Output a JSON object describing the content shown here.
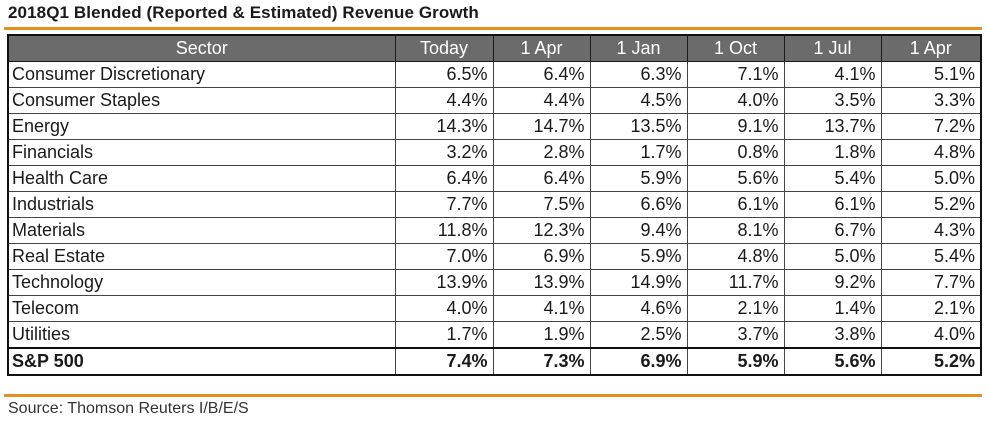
{
  "chart_data": {
    "type": "table",
    "title": "2018Q1 Blended (Reported & Estimated) Revenue Growth",
    "columns": [
      "Sector",
      "Today",
      "1 Apr",
      "1 Jan",
      "1 Oct",
      "1 Jul",
      "1 Apr"
    ],
    "rows": [
      {
        "sector": "Consumer Discretionary",
        "values": [
          "6.5%",
          "6.4%",
          "6.3%",
          "7.1%",
          "4.1%",
          "5.1%"
        ]
      },
      {
        "sector": "Consumer Staples",
        "values": [
          "4.4%",
          "4.4%",
          "4.5%",
          "4.0%",
          "3.5%",
          "3.3%"
        ]
      },
      {
        "sector": "Energy",
        "values": [
          "14.3%",
          "14.7%",
          "13.5%",
          "9.1%",
          "13.7%",
          "7.2%"
        ]
      },
      {
        "sector": "Financials",
        "values": [
          "3.2%",
          "2.8%",
          "1.7%",
          "0.8%",
          "1.8%",
          "4.8%"
        ]
      },
      {
        "sector": "Health Care",
        "values": [
          "6.4%",
          "6.4%",
          "5.9%",
          "5.6%",
          "5.4%",
          "5.0%"
        ]
      },
      {
        "sector": "Industrials",
        "values": [
          "7.7%",
          "7.5%",
          "6.6%",
          "6.1%",
          "6.1%",
          "5.2%"
        ]
      },
      {
        "sector": "Materials",
        "values": [
          "11.8%",
          "12.3%",
          "9.4%",
          "8.1%",
          "6.7%",
          "4.3%"
        ]
      },
      {
        "sector": "Real Estate",
        "values": [
          "7.0%",
          "6.9%",
          "5.9%",
          "4.8%",
          "5.0%",
          "5.4%"
        ]
      },
      {
        "sector": "Technology",
        "values": [
          "13.9%",
          "13.9%",
          "14.9%",
          "11.7%",
          "9.2%",
          "7.7%"
        ]
      },
      {
        "sector": "Telecom",
        "values": [
          "4.0%",
          "4.1%",
          "4.6%",
          "2.1%",
          "1.4%",
          "2.1%"
        ]
      },
      {
        "sector": "Utilities",
        "values": [
          "1.7%",
          "1.9%",
          "2.5%",
          "3.7%",
          "3.8%",
          "4.0%"
        ]
      }
    ],
    "total": {
      "sector": "S&P 500",
      "values": [
        "7.4%",
        "7.3%",
        "6.9%",
        "5.9%",
        "5.6%",
        "5.2%"
      ]
    },
    "source": "Source: Thomson Reuters I/B/E/S"
  },
  "colors": {
    "accent_rule": "#e8901f",
    "header_background": "#6b6b6b",
    "header_text": "#ffffff"
  }
}
